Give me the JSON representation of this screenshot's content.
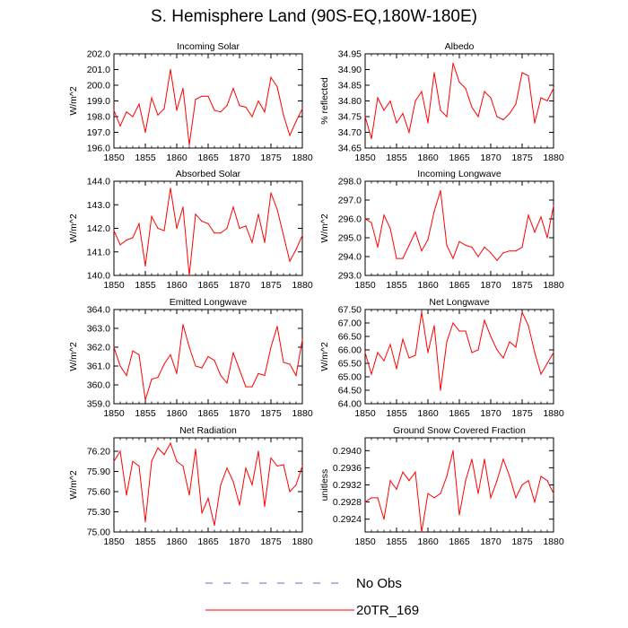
{
  "title": "S. Hemisphere Land (90S-EQ,180W-180E)",
  "colors": {
    "model": "#ff0000",
    "obs": "#6666cc",
    "axis": "#000000"
  },
  "legend": [
    {
      "label": "No Obs",
      "style": "dashed",
      "color": "#6666cc"
    },
    {
      "label": "20TR_169",
      "style": "solid",
      "color": "#ff0000"
    }
  ],
  "chart_data": [
    {
      "type": "line",
      "title": "Incoming Solar",
      "xlabel": "",
      "ylabel": "W/m^2",
      "xlim": [
        1850,
        1880
      ],
      "ylim": [
        196.0,
        202.0
      ],
      "xticks": [
        1850,
        1855,
        1860,
        1865,
        1870,
        1875,
        1880
      ],
      "yticks": [
        196.0,
        197.0,
        198.0,
        199.0,
        200.0,
        201.0,
        202.0
      ],
      "ydecimals": 1,
      "series": [
        {
          "name": "20TR_169",
          "x0": 1850,
          "values": [
            198.4,
            197.4,
            198.3,
            198.0,
            198.8,
            197.0,
            199.2,
            198.1,
            198.5,
            201.0,
            198.4,
            199.8,
            196.2,
            199.1,
            199.3,
            199.3,
            198.4,
            198.3,
            198.7,
            199.8,
            198.7,
            198.6,
            198.0,
            199.0,
            198.3,
            200.5,
            199.9,
            198.1,
            196.8,
            197.7,
            198.5
          ]
        }
      ]
    },
    {
      "type": "line",
      "title": "Albedo",
      "xlabel": "",
      "ylabel": "% reflected",
      "xlim": [
        1850,
        1880
      ],
      "ylim": [
        34.65,
        34.95
      ],
      "xticks": [
        1850,
        1855,
        1860,
        1865,
        1870,
        1875,
        1880
      ],
      "yticks": [
        34.65,
        34.7,
        34.75,
        34.8,
        34.85,
        34.9,
        34.95
      ],
      "ydecimals": 2,
      "series": [
        {
          "name": "20TR_169",
          "x0": 1850,
          "values": [
            34.75,
            34.68,
            34.81,
            34.77,
            34.8,
            34.73,
            34.76,
            34.7,
            34.8,
            34.83,
            34.73,
            34.89,
            34.77,
            34.75,
            34.92,
            34.86,
            34.84,
            34.78,
            34.75,
            34.83,
            34.81,
            34.75,
            34.74,
            34.76,
            34.79,
            34.89,
            34.88,
            34.73,
            34.81,
            34.8,
            34.84
          ]
        }
      ]
    },
    {
      "type": "line",
      "title": "Absorbed Solar",
      "xlabel": "",
      "ylabel": "W/m^2",
      "xlim": [
        1850,
        1880
      ],
      "ylim": [
        140.0,
        144.0
      ],
      "xticks": [
        1850,
        1855,
        1860,
        1865,
        1870,
        1875,
        1880
      ],
      "yticks": [
        140.0,
        141.0,
        142.0,
        143.0,
        144.0
      ],
      "ydecimals": 1,
      "series": [
        {
          "name": "20TR_169",
          "x0": 1850,
          "values": [
            141.9,
            141.3,
            141.5,
            141.6,
            142.2,
            140.4,
            142.5,
            142.0,
            141.9,
            143.7,
            142.0,
            142.9,
            140.0,
            142.6,
            142.3,
            142.2,
            141.8,
            141.8,
            142.0,
            142.9,
            142.0,
            142.1,
            141.4,
            142.6,
            141.4,
            143.5,
            142.8,
            141.7,
            140.6,
            141.1,
            141.7
          ]
        }
      ]
    },
    {
      "type": "line",
      "title": "Incoming Longwave",
      "xlabel": "",
      "ylabel": "W/m^2",
      "xlim": [
        1850,
        1880
      ],
      "ylim": [
        293.0,
        298.0
      ],
      "xticks": [
        1850,
        1855,
        1860,
        1865,
        1870,
        1875,
        1880
      ],
      "yticks": [
        293.0,
        294.0,
        295.0,
        296.0,
        297.0,
        298.0
      ],
      "ydecimals": 1,
      "series": [
        {
          "name": "20TR_169",
          "x0": 1850,
          "values": [
            296.0,
            295.8,
            294.5,
            296.2,
            295.5,
            293.9,
            293.9,
            294.6,
            295.3,
            294.3,
            294.9,
            296.4,
            297.5,
            294.6,
            293.9,
            294.8,
            294.6,
            294.5,
            294.0,
            294.5,
            294.2,
            293.8,
            294.2,
            294.3,
            294.3,
            294.5,
            296.2,
            295.3,
            296.1,
            295.0,
            296.7
          ]
        }
      ]
    },
    {
      "type": "line",
      "title": "Emitted Longwave",
      "xlabel": "",
      "ylabel": "W/m^2",
      "xlim": [
        1850,
        1880
      ],
      "ylim": [
        359.0,
        364.0
      ],
      "xticks": [
        1850,
        1855,
        1860,
        1865,
        1870,
        1875,
        1880
      ],
      "yticks": [
        359.0,
        360.0,
        361.0,
        362.0,
        363.0,
        364.0
      ],
      "ydecimals": 1,
      "series": [
        {
          "name": "20TR_169",
          "x0": 1850,
          "values": [
            362.0,
            361.0,
            360.5,
            361.8,
            361.6,
            359.2,
            360.3,
            360.4,
            361.1,
            361.6,
            360.6,
            363.2,
            362.0,
            361.0,
            360.9,
            361.5,
            361.3,
            360.5,
            360.1,
            361.7,
            360.8,
            359.9,
            359.9,
            360.6,
            360.5,
            362.0,
            363.1,
            361.2,
            361.1,
            360.5,
            362.4
          ]
        }
      ]
    },
    {
      "type": "line",
      "title": "Net Longwave",
      "xlabel": "",
      "ylabel": "W/m^2",
      "xlim": [
        1850,
        1880
      ],
      "ylim": [
        64.0,
        67.5
      ],
      "xticks": [
        1850,
        1855,
        1860,
        1865,
        1870,
        1875,
        1880
      ],
      "yticks": [
        64.0,
        64.5,
        65.0,
        65.5,
        66.0,
        66.5,
        67.0,
        67.5
      ],
      "ydecimals": 2,
      "series": [
        {
          "name": "20TR_169",
          "x0": 1850,
          "values": [
            65.9,
            65.1,
            65.9,
            65.6,
            66.2,
            65.3,
            66.4,
            65.7,
            65.8,
            67.4,
            65.9,
            66.9,
            64.5,
            66.3,
            67.0,
            66.7,
            66.7,
            65.9,
            66.0,
            67.1,
            66.5,
            66.0,
            65.7,
            66.3,
            66.1,
            67.4,
            66.9,
            65.9,
            65.1,
            65.5,
            65.9
          ]
        }
      ]
    },
    {
      "type": "line",
      "title": "Net Radiation",
      "xlabel": "",
      "ylabel": "W/m^2",
      "xlim": [
        1850,
        1880
      ],
      "ylim": [
        75.0,
        76.4
      ],
      "xticks": [
        1850,
        1855,
        1860,
        1865,
        1870,
        1875,
        1880
      ],
      "yticks": [
        75.0,
        75.3,
        75.6,
        75.9,
        76.2
      ],
      "ydecimals": 2,
      "series": [
        {
          "name": "20TR_169",
          "x0": 1850,
          "values": [
            76.05,
            76.2,
            75.55,
            76.05,
            75.98,
            75.15,
            76.05,
            76.25,
            76.15,
            76.32,
            76.05,
            75.98,
            75.55,
            76.23,
            75.28,
            75.5,
            75.1,
            75.7,
            75.95,
            75.75,
            75.4,
            75.95,
            75.7,
            76.2,
            75.38,
            76.1,
            75.98,
            76.0,
            75.6,
            75.7,
            75.98
          ]
        }
      ]
    },
    {
      "type": "line",
      "title": "Ground Snow Covered Fraction",
      "xlabel": "",
      "ylabel": "unitless",
      "xlim": [
        1850,
        1880
      ],
      "ylim": [
        0.2921,
        0.2943
      ],
      "xticks": [
        1850,
        1855,
        1860,
        1865,
        1870,
        1875,
        1880
      ],
      "yticks": [
        0.2924,
        0.2928,
        0.2932,
        0.2936,
        0.294
      ],
      "ydecimals": 4,
      "series": [
        {
          "name": "20TR_169",
          "x0": 1850,
          "values": [
            0.2928,
            0.2929,
            0.2929,
            0.2924,
            0.2933,
            0.2931,
            0.2935,
            0.2933,
            0.2935,
            0.2921,
            0.293,
            0.2929,
            0.293,
            0.2934,
            0.294,
            0.2925,
            0.2933,
            0.2938,
            0.293,
            0.2938,
            0.2929,
            0.2933,
            0.2938,
            0.2934,
            0.2929,
            0.2932,
            0.2933,
            0.2928,
            0.2934,
            0.2933,
            0.293
          ]
        }
      ]
    }
  ]
}
